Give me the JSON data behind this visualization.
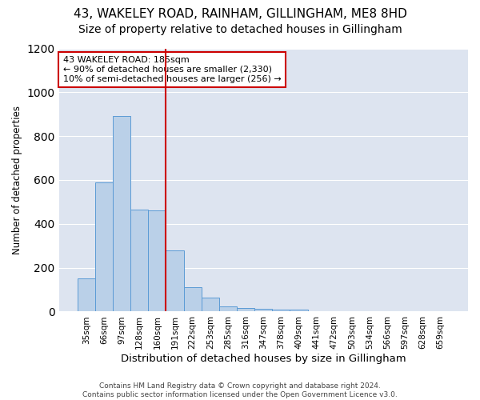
{
  "title": "43, WAKELEY ROAD, RAINHAM, GILLINGHAM, ME8 8HD",
  "subtitle": "Size of property relative to detached houses in Gillingham",
  "xlabel": "Distribution of detached houses by size in Gillingham",
  "ylabel": "Number of detached properties",
  "categories": [
    "35sqm",
    "66sqm",
    "97sqm",
    "128sqm",
    "160sqm",
    "191sqm",
    "222sqm",
    "253sqm",
    "285sqm",
    "316sqm",
    "347sqm",
    "378sqm",
    "409sqm",
    "441sqm",
    "472sqm",
    "503sqm",
    "534sqm",
    "566sqm",
    "597sqm",
    "628sqm",
    "659sqm"
  ],
  "values": [
    150,
    590,
    890,
    465,
    460,
    280,
    110,
    62,
    25,
    18,
    12,
    10,
    8,
    0,
    0,
    0,
    0,
    0,
    0,
    0,
    0
  ],
  "bar_color": "#bad0e8",
  "bar_edge_color": "#5b9bd5",
  "background_color": "#dde4f0",
  "grid_color": "#ffffff",
  "vline_color": "#cc0000",
  "vline_pos": 4.5,
  "annotation_text": "43 WAKELEY ROAD: 185sqm\n← 90% of detached houses are smaller (2,330)\n10% of semi-detached houses are larger (256) →",
  "annotation_box_color": "#ffffff",
  "annotation_box_edge_color": "#cc0000",
  "ylim": [
    0,
    1200
  ],
  "yticks": [
    0,
    200,
    400,
    600,
    800,
    1000,
    1200
  ],
  "figure_bg": "#ffffff",
  "footer_text": "Contains HM Land Registry data © Crown copyright and database right 2024.\nContains public sector information licensed under the Open Government Licence v3.0.",
  "title_fontsize": 11,
  "subtitle_fontsize": 10,
  "xlabel_fontsize": 9.5,
  "ylabel_fontsize": 8.5,
  "annotation_fontsize": 8,
  "footer_fontsize": 6.5
}
